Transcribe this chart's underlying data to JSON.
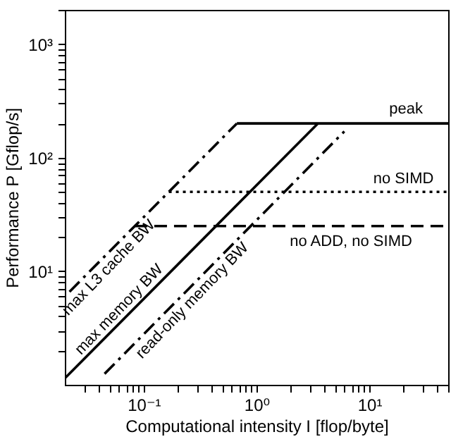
{
  "chart_data": {
    "type": "line",
    "xlabel": "Computational intensity I [flop/byte]",
    "ylabel": "Performance P [Gflop/s]",
    "log": "xy",
    "grid": false,
    "marker": "none",
    "xlim": [
      0.02,
      50
    ],
    "ylim": [
      1,
      2000
    ],
    "xticks": [
      {
        "value": 0.03,
        "label": null
      },
      {
        "value": 0.04,
        "label": null
      },
      {
        "value": 0.05,
        "label": null
      },
      {
        "value": 0.06,
        "label": null
      },
      {
        "value": 0.07,
        "label": null
      },
      {
        "value": 0.08,
        "label": null
      },
      {
        "value": 0.09,
        "label": null
      },
      {
        "value": 0.1,
        "label": "10⁻¹"
      },
      {
        "value": 0.2,
        "label": null
      },
      {
        "value": 0.3,
        "label": null
      },
      {
        "value": 0.4,
        "label": null
      },
      {
        "value": 0.5,
        "label": null
      },
      {
        "value": 0.6,
        "label": null
      },
      {
        "value": 0.7,
        "label": null
      },
      {
        "value": 0.8,
        "label": null
      },
      {
        "value": 0.9,
        "label": null
      },
      {
        "value": 1,
        "label": "10⁰"
      },
      {
        "value": 2,
        "label": null
      },
      {
        "value": 3,
        "label": null
      },
      {
        "value": 4,
        "label": null
      },
      {
        "value": 5,
        "label": null
      },
      {
        "value": 6,
        "label": null
      },
      {
        "value": 7,
        "label": null
      },
      {
        "value": 8,
        "label": null
      },
      {
        "value": 9,
        "label": null
      },
      {
        "value": 10,
        "label": "10¹"
      },
      {
        "value": 20,
        "label": null
      },
      {
        "value": 30,
        "label": null
      },
      {
        "value": 40,
        "label": null
      },
      {
        "value": 50,
        "label": null
      }
    ],
    "yticks": [
      {
        "value": 2,
        "label": null
      },
      {
        "value": 3,
        "label": null
      },
      {
        "value": 4,
        "label": null
      },
      {
        "value": 5,
        "label": null
      },
      {
        "value": 6,
        "label": null
      },
      {
        "value": 7,
        "label": null
      },
      {
        "value": 8,
        "label": null
      },
      {
        "value": 9,
        "label": null
      },
      {
        "value": 10,
        "label": "10¹"
      },
      {
        "value": 20,
        "label": null
      },
      {
        "value": 30,
        "label": null
      },
      {
        "value": 40,
        "label": null
      },
      {
        "value": 50,
        "label": null
      },
      {
        "value": 60,
        "label": null
      },
      {
        "value": 70,
        "label": null
      },
      {
        "value": 80,
        "label": null
      },
      {
        "value": 90,
        "label": null
      },
      {
        "value": 100,
        "label": "10²"
      },
      {
        "value": 200,
        "label": null
      },
      {
        "value": 300,
        "label": null
      },
      {
        "value": 400,
        "label": null
      },
      {
        "value": 500,
        "label": null
      },
      {
        "value": 600,
        "label": null
      },
      {
        "value": 700,
        "label": null
      },
      {
        "value": 800,
        "label": null
      },
      {
        "value": 900,
        "label": null
      },
      {
        "value": 1000,
        "label": "10³"
      },
      {
        "value": 2000,
        "label": null
      }
    ],
    "series": [
      {
        "name": "peak",
        "color": "#000000",
        "line_style": "solid",
        "x": [
          0.67,
          50
        ],
        "values": [
          200,
          200
        ]
      },
      {
        "name": "max L3 cache BW",
        "color": "#000000",
        "line_style": "dashdot",
        "x": [
          0.022,
          0.67
        ],
        "values": [
          6.6,
          200
        ]
      },
      {
        "name": "max memory BW",
        "color": "#000000",
        "line_style": "solid",
        "x": [
          0.02,
          3.5
        ],
        "values": [
          1.14,
          200
        ]
      },
      {
        "name": "read-only memory BW",
        "color": "#000000",
        "line_style": "dashdot",
        "x": [
          0.045,
          6
        ],
        "values": [
          1.25,
          170
        ]
      },
      {
        "name": "no SIMD",
        "color": "#000000",
        "line_style": "dotted",
        "x": [
          0.167,
          50
        ],
        "values": [
          50,
          50
        ]
      },
      {
        "name": "no ADD, no SIMD",
        "color": "#000000",
        "line_style": "dashed",
        "x": [
          0.083,
          50
        ],
        "values": [
          25,
          25
        ]
      }
    ]
  }
}
